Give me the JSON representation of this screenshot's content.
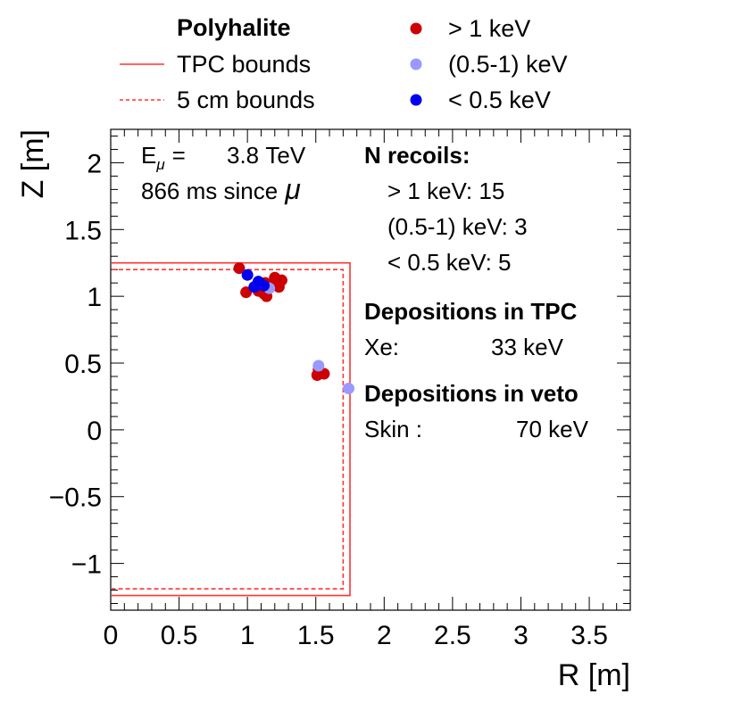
{
  "chart_data": {
    "type": "scatter",
    "title": "Polyhalite",
    "xlabel": "R [m]",
    "ylabel": "Z [m]",
    "xlim": [
      0,
      3.8
    ],
    "ylim": [
      -1.35,
      2.25
    ],
    "x_ticks": [
      {
        "value": 0,
        "label": "0"
      },
      {
        "value": 0.5,
        "label": "0.5"
      },
      {
        "value": 1,
        "label": "1"
      },
      {
        "value": 1.5,
        "label": "1.5"
      },
      {
        "value": 2,
        "label": "2"
      },
      {
        "value": 2.5,
        "label": "2.5"
      },
      {
        "value": 3,
        "label": "3"
      },
      {
        "value": 3.5,
        "label": "3.5"
      }
    ],
    "y_ticks": [
      {
        "value": -1,
        "label": "−1"
      },
      {
        "value": -0.5,
        "label": "−0.5"
      },
      {
        "value": 0,
        "label": "0"
      },
      {
        "value": 0.5,
        "label": "0.5"
      },
      {
        "value": 1,
        "label": "1"
      },
      {
        "value": 1.5,
        "label": "1.5"
      },
      {
        "value": 2,
        "label": "2"
      }
    ],
    "bounds": [
      {
        "name": "TPC bounds",
        "style": "solid",
        "color": "#ff3333",
        "r_max": 1.75,
        "z_min": -1.24,
        "z_max": 1.25
      },
      {
        "name": "5 cm bounds",
        "style": "dashed",
        "color": "#ff3333",
        "r_max": 1.7,
        "z_min": -1.19,
        "z_max": 1.2
      }
    ],
    "series": [
      {
        "name": "> 1 keV",
        "color": "#cc0000",
        "points": [
          {
            "r": 0.94,
            "z": 1.21
          },
          {
            "r": 1.2,
            "z": 1.14
          },
          {
            "r": 1.25,
            "z": 1.12
          },
          {
            "r": 1.13,
            "z": 1.1
          },
          {
            "r": 1.23,
            "z": 1.07
          },
          {
            "r": 1.08,
            "z": 1.04
          },
          {
            "r": 1.12,
            "z": 1.02
          },
          {
            "r": 0.99,
            "z": 1.03
          },
          {
            "r": 1.14,
            "z": 1.0
          },
          {
            "r": 1.52,
            "z": 0.45
          },
          {
            "r": 1.56,
            "z": 0.42
          },
          {
            "r": 1.51,
            "z": 0.41
          },
          {
            "r": 1.53,
            "z": 0.43
          },
          {
            "r": 1.17,
            "z": 1.09
          },
          {
            "r": 1.1,
            "z": 1.05
          }
        ]
      },
      {
        "name": "(0.5-1) keV",
        "color": "#9999ff",
        "points": [
          {
            "r": 1.52,
            "z": 0.48
          },
          {
            "r": 1.74,
            "z": 0.31
          },
          {
            "r": 1.16,
            "z": 1.06
          }
        ]
      },
      {
        "name": "< 0.5 keV",
        "color": "#0000ee",
        "points": [
          {
            "r": 1.0,
            "z": 1.16
          },
          {
            "r": 1.08,
            "z": 1.11
          },
          {
            "r": 1.12,
            "z": 1.08
          },
          {
            "r": 1.05,
            "z": 1.07
          },
          {
            "r": 1.1,
            "z": 1.09
          }
        ]
      }
    ],
    "legend": {
      "title": "Polyhalite",
      "line_entries": [
        {
          "label": "TPC bounds",
          "style": "solid",
          "color": "#ff3333"
        },
        {
          "label": "5 cm bounds",
          "style": "dashed",
          "color": "#ff3333"
        }
      ],
      "marker_entries": [
        {
          "label": "> 1 keV",
          "color": "#cc0000"
        },
        {
          "label": "(0.5-1) keV",
          "color": "#9999ff"
        },
        {
          "label": "< 0.5 keV",
          "color": "#0000ee"
        }
      ]
    },
    "annotations": {
      "energy_prefix": "E",
      "energy_sub": "μ",
      "energy_eq": "=",
      "energy_value": "3.8 TeV",
      "time_text": "866 ms since",
      "time_symbol": "μ",
      "recoils_title": "N recoils:",
      "recoils": [
        {
          "label": "> 1 keV: 15"
        },
        {
          "label": "(0.5-1) keV: 3"
        },
        {
          "label": "< 0.5 keV: 5"
        }
      ],
      "tpc_title": "Depositions in TPC",
      "tpc_label": "Xe:",
      "tpc_value": "33 keV",
      "veto_title": "Depositions in veto",
      "veto_label": "Skin :",
      "veto_value": "70 keV"
    }
  }
}
